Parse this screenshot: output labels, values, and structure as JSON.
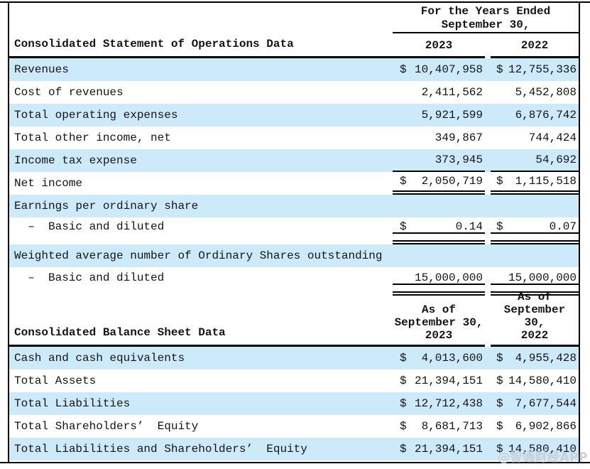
{
  "page": {
    "watermark": "@智通财经APP"
  },
  "colors": {
    "highlight": "#cdeafb",
    "rule": "#000000",
    "text": "#141414",
    "watermark": "#c9ced3"
  },
  "operations": {
    "period_header": {
      "line1": "For the Years Ended",
      "line2": "September 30,"
    },
    "title": "Consolidated Statement of Operations Data",
    "columns": [
      "2023",
      "2022"
    ],
    "rows": [
      {
        "label": "Revenues",
        "cur1": "$",
        "v1": "10,407,958",
        "cur2": "$",
        "v2": "12,755,336"
      },
      {
        "label": "Cost of revenues",
        "cur1": "",
        "v1": "2,411,562",
        "cur2": "",
        "v2": "5,452,808"
      },
      {
        "label": "Total operating expenses",
        "cur1": "",
        "v1": "5,921,599",
        "cur2": "",
        "v2": "6,876,742"
      },
      {
        "label": "Total other income, net",
        "cur1": "",
        "v1": "349,867",
        "cur2": "",
        "v2": "744,424"
      },
      {
        "label": "Income tax expense",
        "cur1": "",
        "v1": "373,945",
        "cur2": "",
        "v2": "54,692"
      },
      {
        "label": "Net income",
        "cur1": "$",
        "v1": "2,050,719",
        "cur2": "$",
        "v2": "1,115,518"
      },
      {
        "label": "Earnings per ordinary share",
        "cur1": "",
        "v1": "",
        "cur2": "",
        "v2": ""
      },
      {
        "label": "  –  Basic and diluted",
        "cur1": "$",
        "v1": "0.14",
        "cur2": "$",
        "v2": "0.07"
      },
      {
        "label": "Weighted average number of Ordinary Shares outstanding",
        "cur1": "",
        "v1": "",
        "cur2": "",
        "v2": ""
      },
      {
        "label": "  –  Basic and diluted",
        "cur1": "",
        "v1": "15,000,000",
        "cur2": "",
        "v2": "15,000,000"
      }
    ]
  },
  "balance_sheet": {
    "title": "Consolidated Balance Sheet Data",
    "columns": [
      {
        "line1": "As of",
        "line2": "September 30,",
        "line3": "2023"
      },
      {
        "line1": "As of",
        "line2": "September 30,",
        "line3": "2022"
      }
    ],
    "rows": [
      {
        "label": "Cash and cash equivalents",
        "cur1": "$",
        "v1": "4,013,600",
        "cur2": "$",
        "v2": "4,955,428"
      },
      {
        "label": "Total Assets",
        "cur1": "$",
        "v1": "21,394,151",
        "cur2": "$",
        "v2": "14,580,410"
      },
      {
        "label": "Total Liabilities",
        "cur1": "$",
        "v1": "12,712,438",
        "cur2": "$",
        "v2": "7,677,544"
      },
      {
        "label": "Total Shareholders’  Equity",
        "cur1": "$",
        "v1": "8,681,713",
        "cur2": "$",
        "v2": "6,902,866"
      },
      {
        "label": "Total Liabilities and Shareholders’  Equity",
        "cur1": "$",
        "v1": "21,394,151",
        "cur2": "$",
        "v2": "14,580,410"
      }
    ]
  }
}
